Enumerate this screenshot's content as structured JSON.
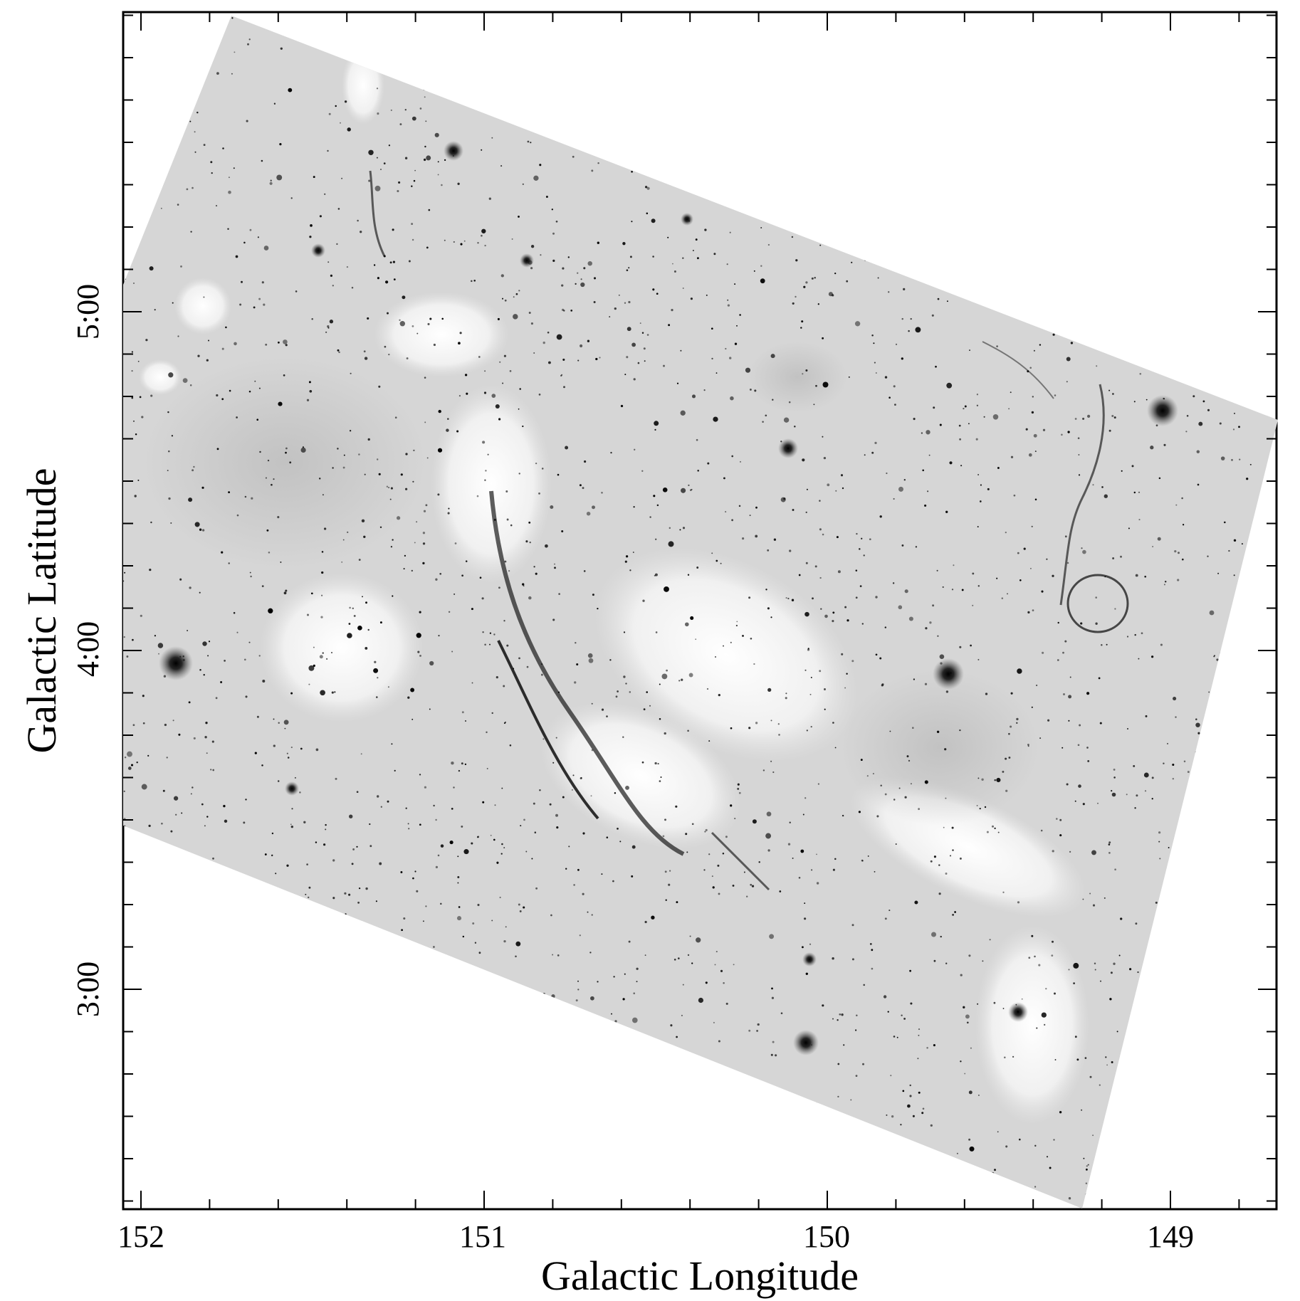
{
  "axes": {
    "x_label": "Galactic Longitude",
    "y_label": "Galactic Latitude",
    "x_ticks": [
      "152",
      "151",
      "150",
      "149"
    ],
    "y_ticks": [
      "5:00",
      "4:00",
      "3:00"
    ]
  },
  "image": {
    "description_colormap": "inverted-grayscale",
    "background_color": "#d9d9d9",
    "frame_color": "#000000"
  }
}
